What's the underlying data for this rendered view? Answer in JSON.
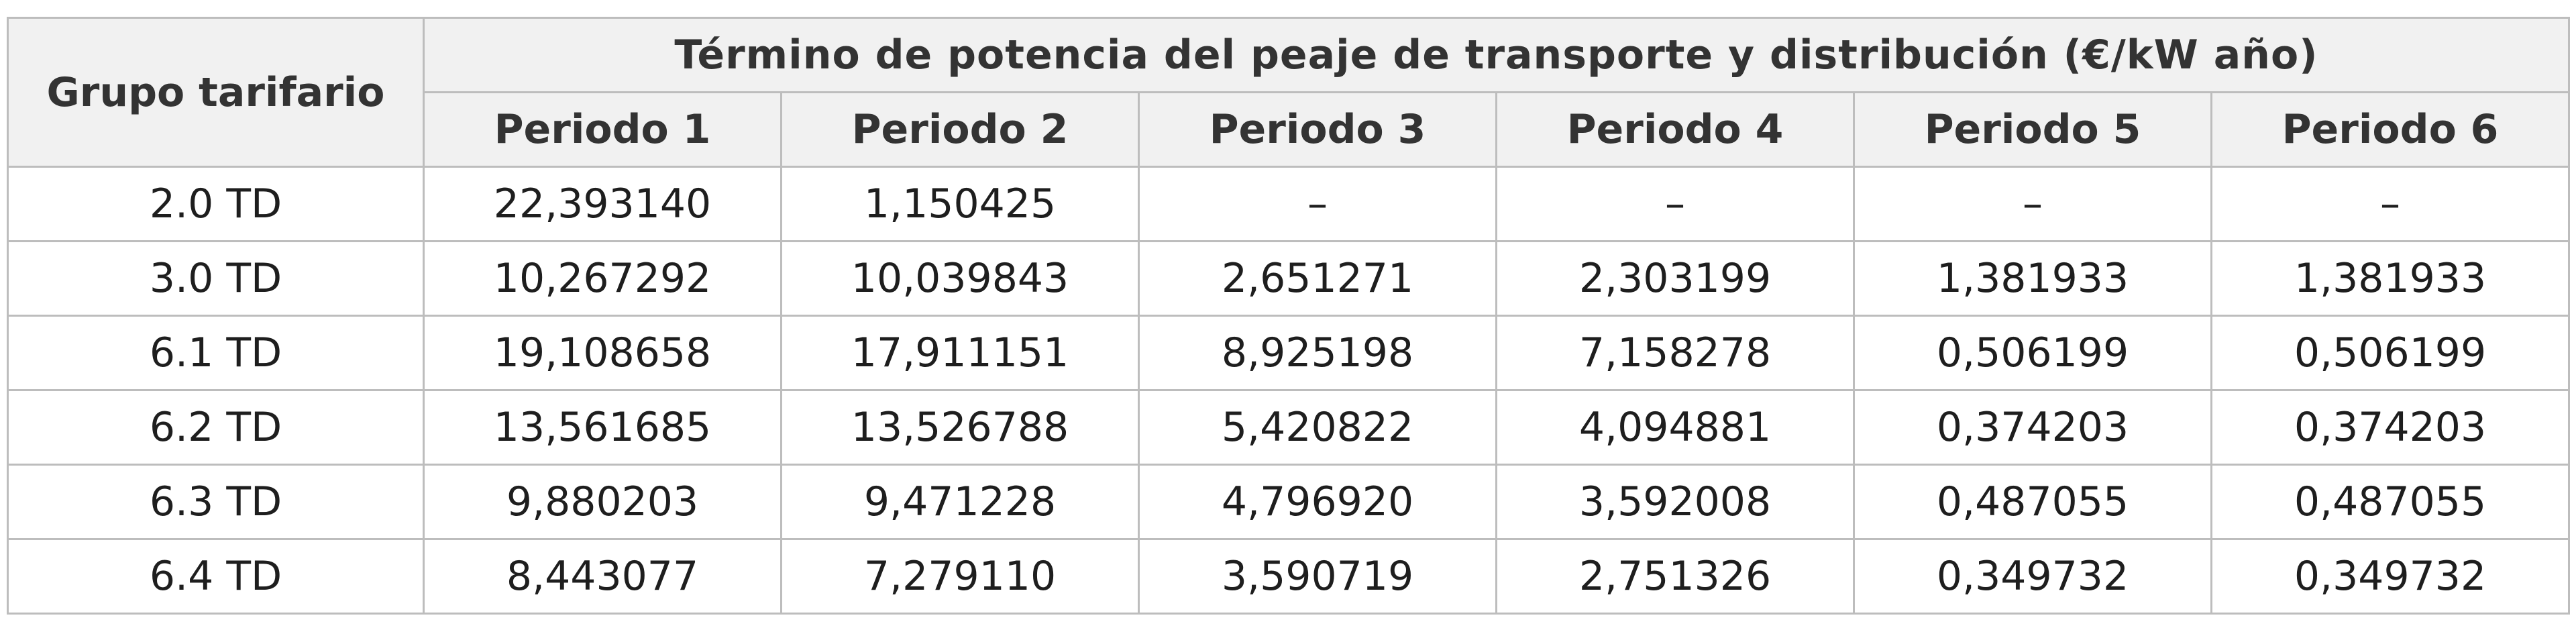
{
  "table": {
    "group_header": "Grupo tarifario",
    "main_header": "Término de potencia del peaje de transporte y distribución (€/kW año)",
    "periods": [
      "Periodo 1",
      "Periodo 2",
      "Periodo 3",
      "Periodo 4",
      "Periodo 5",
      "Periodo 6"
    ],
    "rows": [
      {
        "group": "2.0 TD",
        "values": [
          "22,393140",
          "1,150425",
          "–",
          "–",
          "–",
          "–"
        ]
      },
      {
        "group": "3.0 TD",
        "values": [
          "10,267292",
          "10,039843",
          "2,651271",
          "2,303199",
          "1,381933",
          "1,381933"
        ]
      },
      {
        "group": "6.1 TD",
        "values": [
          "19,108658",
          "17,911151",
          "8,925198",
          "7,158278",
          "0,506199",
          "0,506199"
        ]
      },
      {
        "group": "6.2 TD",
        "values": [
          "13,561685",
          "13,526788",
          "5,420822",
          "4,094881",
          "0,374203",
          "0,374203"
        ]
      },
      {
        "group": "6.3 TD",
        "values": [
          "9,880203",
          "9,471228",
          "4,796920",
          "3,592008",
          "0,487055",
          "0,487055"
        ]
      },
      {
        "group": "6.4 TD",
        "values": [
          "8,443077",
          "7,279110",
          "3,590719",
          "2,751326",
          "0,349732",
          "0,349732"
        ]
      }
    ]
  }
}
